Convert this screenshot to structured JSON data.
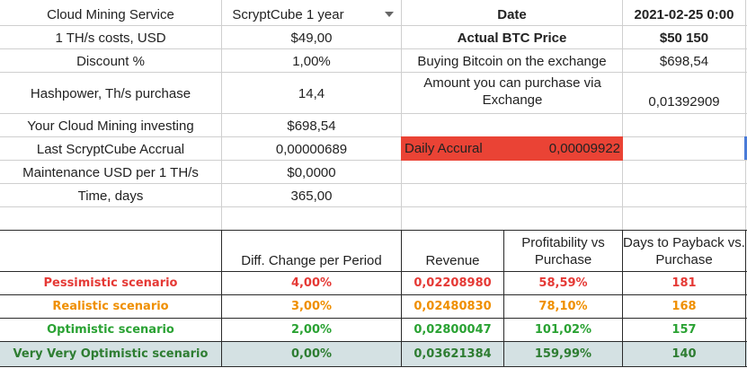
{
  "top_left": {
    "rows": [
      {
        "label": "Cloud Mining Service",
        "value": "ScryptCube 1 year"
      },
      {
        "label": "1 TH/s costs, USD",
        "value": "$49,00"
      },
      {
        "label": "Discount %",
        "value": "1,00%"
      },
      {
        "label": "Hashpower, Th/s purchase",
        "value": "14,4"
      },
      {
        "label": "Your Cloud Mining investing",
        "value": "$698,54"
      },
      {
        "label": "Last ScryptCube Accrual",
        "value": "0,00000689"
      },
      {
        "label": "Maintenance USD per 1 TH/s",
        "value": "$0,0000"
      },
      {
        "label": "Time, days",
        "value": "365,00"
      }
    ]
  },
  "top_right": {
    "date_label": "Date",
    "date_value": "2021-02-25 0:00",
    "btc_label": "Actual BTC Price",
    "btc_value": "$50 150",
    "buy_label": "Buying Bitcoin on the exchange",
    "buy_value": "$698,54",
    "amount_label": "Amount you can purchase via Exchange",
    "amount_value": "0,01392909",
    "daily_label": "Daily Accural",
    "daily_value": "0,00009922"
  },
  "colors": {
    "daily_bg": "#ea4335",
    "last_row_bg": "#d4e1e3",
    "red": "#e53935",
    "orange": "#ef8f00",
    "green": "#2aa233"
  },
  "scenarios": {
    "headers": [
      "Diff. Change per Period",
      "Revenue",
      "Profitability vs Purchase",
      "Days to Payback vs. Purchase"
    ],
    "rows": [
      {
        "name": "Pessimistic scenario",
        "diff": "4,00%",
        "revenue": "0,02208980",
        "profit": "58,59%",
        "days": "181"
      },
      {
        "name": "Realistic scenario",
        "diff": "3,00%",
        "revenue": "0,02480830",
        "profit": "78,10%",
        "days": "168"
      },
      {
        "name": "Optimistic scenario",
        "diff": "2,00%",
        "revenue": "0,02800047",
        "profit": "101,02%",
        "days": "157"
      },
      {
        "name": "Very Very Optimistic scenario",
        "diff": "0,00%",
        "revenue": "0,03621384",
        "profit": "159,99%",
        "days": "140"
      }
    ]
  },
  "icons": {
    "dropdown": "dropdown-arrow-icon"
  }
}
